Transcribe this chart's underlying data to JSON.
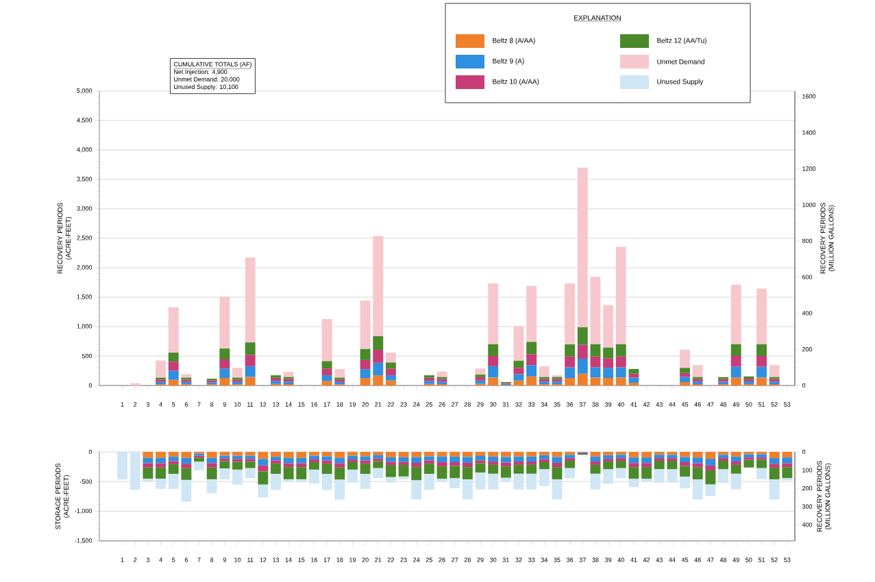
{
  "chart_data": [
    {
      "type": "bar",
      "stacked": true,
      "ylabel": "RECOVERY PERIODS (ACRE-FEET)",
      "y2label": "RECOVERY PERIODS (MILLION GALLONS)",
      "legend_title": "EXPLANATION",
      "legend": "top right",
      "grid": "y",
      "categories": [
        "1",
        "2",
        "3",
        "4",
        "5",
        "6",
        "7",
        "8",
        "9",
        "10",
        "11",
        "12",
        "13",
        "14",
        "15",
        "16",
        "17",
        "18",
        "19",
        "20",
        "21",
        "22",
        "23",
        "24",
        "25",
        "26",
        "27",
        "28",
        "29",
        "30",
        "31",
        "32",
        "33",
        "34",
        "35",
        "36",
        "37",
        "38",
        "39",
        "40",
        "41",
        "42",
        "43",
        "44",
        "45",
        "46",
        "47",
        "48",
        "49",
        "50",
        "51",
        "52",
        "53"
      ],
      "ylim": [
        0,
        5000
      ],
      "yticks": [
        0,
        500,
        {
          "value": 1000,
          "label": "1,000"
        },
        {
          "value": 1500,
          "label": "1,500"
        },
        {
          "value": 2000,
          "label": "2,000"
        },
        {
          "value": 2500,
          "label": "2,500"
        },
        {
          "value": 3000,
          "label": "3,000"
        },
        {
          "value": 3500,
          "label": "3,500"
        },
        {
          "value": 4000,
          "label": "4,000"
        },
        {
          "value": 4500,
          "label": "4,500"
        },
        {
          "value": 5000,
          "label": "5,000"
        }
      ],
      "y2lim": [
        0,
        1629.3
      ],
      "y2ticks": [
        0,
        200,
        400,
        600,
        800,
        1000,
        1200,
        1400,
        1600
      ],
      "annotations": [
        "CUMULATIVE TOTALS (AF)",
        "Net Injection: 4,900",
        "Unmet Demand: 20,000",
        "Unused Supply: 10,100"
      ],
      "series": [
        {
          "name": "Beltz 8 (A/AA)",
          "color": "#f07f2a",
          "values": [
            0,
            0,
            0,
            20,
            96,
            20,
            0,
            17,
            127,
            20,
            146,
            0,
            26,
            22,
            0,
            0,
            77,
            20,
            0,
            127,
            173,
            85,
            0,
            0,
            26,
            22,
            0,
            0,
            28,
            135,
            9,
            85,
            154,
            22,
            22,
            127,
            200,
            135,
            127,
            135,
            46,
            0,
            0,
            0,
            58,
            22,
            0,
            21,
            135,
            23,
            135,
            22,
            0
          ]
        },
        {
          "name": "Beltz 9 (A)",
          "color": "#2f8fe0",
          "values": [
            0,
            0,
            0,
            40,
            154,
            40,
            0,
            35,
            161,
            40,
            181,
            0,
            52,
            44,
            0,
            0,
            96,
            40,
            0,
            150,
            212,
            88,
            0,
            0,
            52,
            44,
            0,
            0,
            56,
            192,
            17,
            107,
            192,
            44,
            44,
            181,
            254,
            173,
            173,
            173,
            89,
            0,
            0,
            0,
            88,
            44,
            0,
            43,
            184,
            46,
            184,
            44,
            0
          ]
        },
        {
          "name": "Beltz 10 (A/AA)",
          "color": "#c83c78",
          "values": [
            0,
            0,
            0,
            40,
            154,
            40,
            0,
            35,
            154,
            40,
            192,
            0,
            52,
            44,
            0,
            0,
            115,
            40,
            0,
            154,
            219,
            115,
            0,
            0,
            52,
            44,
            0,
            0,
            56,
            173,
            17,
            108,
            185,
            44,
            44,
            184,
            238,
            184,
            162,
            184,
            65,
            0,
            0,
            0,
            66,
            44,
            0,
            43,
            181,
            46,
            181,
            44,
            0
          ]
        },
        {
          "name": "Beltz 12 (AA/Tu)",
          "color": "#4a8a2a",
          "values": [
            0,
            0,
            0,
            35,
            154,
            35,
            0,
            28,
            185,
            35,
            212,
            0,
            43,
            36,
            0,
            0,
            127,
            35,
            0,
            192,
            234,
            104,
            0,
            0,
            43,
            36,
            0,
            0,
            45,
            204,
            15,
            123,
            211,
            36,
            36,
            208,
            300,
            212,
            184,
            212,
            81,
            0,
            0,
            0,
            88,
            36,
            0,
            35,
            204,
            39,
            204,
            36,
            0
          ]
        },
        {
          "name": "Unmet Demand",
          "color": "#f6c8cd",
          "values": [
            0,
            40,
            0,
            290,
            769,
            57,
            0,
            0,
            881,
            165,
            1442,
            0,
            0,
            85,
            0,
            0,
            712,
            142,
            0,
            819,
            1700,
            166,
            0,
            0,
            0,
            92,
            0,
            0,
            103,
            1027,
            0,
            585,
            950,
            181,
            27,
            1031,
            2708,
            1142,
            719,
            1650,
            0,
            0,
            0,
            0,
            308,
            200,
            0,
            0,
            1008,
            0,
            942,
            200,
            0
          ]
        }
      ]
    },
    {
      "type": "bar",
      "stacked": true,
      "ylabel": "STORAGE PERIODS (ACRE-FEET)",
      "y2label": "RECOVERY PERIODS (MILLION GALLONS)",
      "grid": "y",
      "categories": [
        "1",
        "2",
        "3",
        "4",
        "5",
        "6",
        "7",
        "8",
        "9",
        "10",
        "11",
        "12",
        "13",
        "14",
        "15",
        "16",
        "17",
        "18",
        "19",
        "20",
        "21",
        "22",
        "23",
        "24",
        "25",
        "26",
        "27",
        "28",
        "29",
        "30",
        "31",
        "32",
        "33",
        "34",
        "35",
        "36",
        "37",
        "38",
        "39",
        "40",
        "41",
        "42",
        "43",
        "44",
        "45",
        "46",
        "47",
        "48",
        "49",
        "50",
        "51",
        "52",
        "53"
      ],
      "ylim": [
        -1500,
        0
      ],
      "yticks": [
        {
          "value": -1500,
          "label": "-1,500"
        },
        {
          "value": -1000,
          "label": "-1,000"
        },
        -500,
        0
      ],
      "y2lim": [
        488.8,
        0
      ],
      "y2ticks": [
        0,
        100,
        200,
        300,
        400
      ],
      "series": [
        {
          "color": "#f07f2a",
          "values": [
            0,
            0,
            -101,
            -101,
            -83,
            -101,
            -29,
            -101,
            -65,
            -65,
            -65,
            -119,
            -83,
            -101,
            -101,
            -65,
            -76,
            -101,
            -65,
            -76,
            -54,
            -90,
            -90,
            -90,
            -76,
            -79,
            -79,
            -86,
            -68,
            -79,
            -86,
            -79,
            -79,
            -56,
            -86,
            -49,
            -10,
            -79,
            -56,
            -49,
            -94,
            -94,
            -49,
            -49,
            -86,
            -94,
            -117,
            -49,
            -79,
            -41,
            -41,
            -105,
            -94
          ]
        },
        {
          "color": "#2f8fe0",
          "values": [
            0,
            0,
            -90,
            -90,
            -72,
            -97,
            -36,
            -90,
            -47,
            -54,
            -54,
            -108,
            -61,
            -90,
            -90,
            -61,
            -68,
            -90,
            -61,
            -68,
            -58,
            -76,
            -76,
            -94,
            -68,
            -94,
            -94,
            -98,
            -75,
            -83,
            -94,
            -83,
            -83,
            -68,
            -98,
            -56,
            -13,
            -83,
            -61,
            -56,
            -94,
            -94,
            -56,
            -56,
            -87,
            -98,
            -112,
            -56,
            -83,
            -53,
            -53,
            -94,
            -98
          ]
        },
        {
          "color": "#c83c78",
          "values": [
            0,
            0,
            -72,
            -72,
            -54,
            -76,
            -36,
            -72,
            -43,
            -47,
            -47,
            -101,
            -54,
            -65,
            -65,
            -47,
            -54,
            -72,
            -47,
            -54,
            -43,
            -54,
            -54,
            -72,
            -54,
            -71,
            -64,
            -72,
            -49,
            -56,
            -64,
            -56,
            -56,
            -49,
            -72,
            -45,
            -12,
            -56,
            -45,
            -45,
            -68,
            -68,
            -45,
            -45,
            -64,
            -71,
            -83,
            -45,
            -56,
            -41,
            -41,
            -68,
            -64
          ]
        },
        {
          "color": "#4a8a2a",
          "values": [
            0,
            0,
            -191,
            -191,
            -162,
            -198,
            -65,
            -198,
            -126,
            -133,
            -108,
            -223,
            -173,
            -205,
            -205,
            -126,
            -173,
            -205,
            -126,
            -173,
            -119,
            -205,
            -194,
            -223,
            -173,
            -211,
            -207,
            -206,
            -158,
            -150,
            -192,
            -150,
            -150,
            -120,
            -206,
            -124,
            -14,
            -150,
            -131,
            -124,
            -199,
            -199,
            -143,
            -143,
            -180,
            -199,
            -237,
            -143,
            -150,
            -128,
            -139,
            -195,
            -188
          ]
        },
        {
          "name": "Unused Supply",
          "color": "#cfe6f4",
          "values": [
            -461,
            -641,
            -43,
            -169,
            -252,
            -367,
            -144,
            -234,
            -180,
            -252,
            -169,
            -216,
            -270,
            -43,
            -43,
            -234,
            -270,
            -335,
            -216,
            -252,
            -169,
            -90,
            -47,
            -324,
            -270,
            -45,
            -169,
            -339,
            -282,
            -264,
            -64,
            -264,
            -264,
            -282,
            -339,
            -170,
            0,
            -264,
            -245,
            -170,
            -139,
            -45,
            -226,
            -226,
            -196,
            -339,
            -195,
            -226,
            -264,
            null,
            -188,
            -339,
            -37
          ]
        }
      ]
    }
  ]
}
